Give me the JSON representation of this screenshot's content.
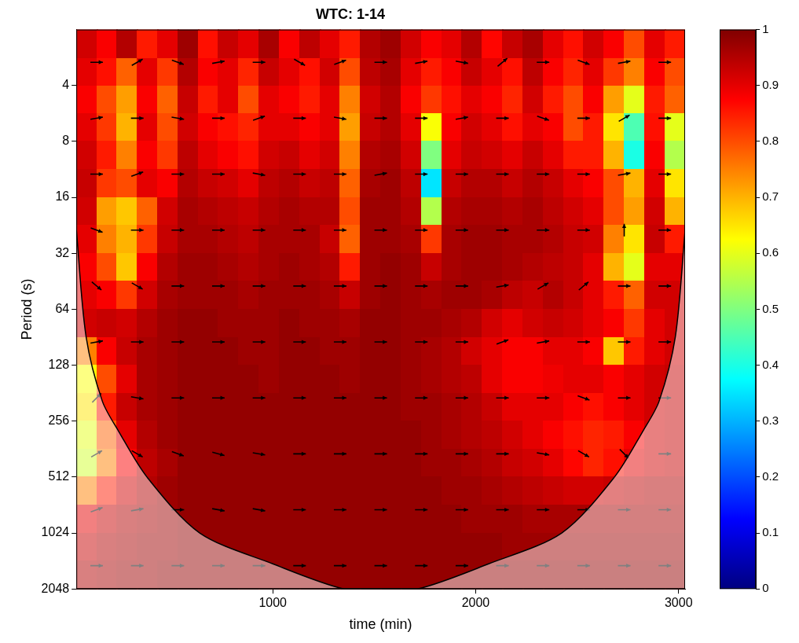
{
  "chart_data": {
    "type": "heatmap",
    "title": "WTC: 1-14",
    "x_label": "time (min)",
    "y_label": "Period (s)",
    "xlim": [
      32,
      3032
    ],
    "xticks": [
      1000,
      2000,
      3000
    ],
    "ylim": [
      2,
      2048
    ],
    "yticks": [
      4,
      8,
      16,
      32,
      64,
      128,
      256,
      512,
      1024,
      2048
    ],
    "log": "y",
    "grid": false,
    "x": [
      82,
      182,
      282,
      382,
      482,
      582,
      682,
      782,
      882,
      982,
      1082,
      1182,
      1282,
      1382,
      1482,
      1582,
      1682,
      1782,
      1882,
      1982,
      2082,
      2182,
      2282,
      2382,
      2482,
      2582,
      2682,
      2782,
      2882,
      2982
    ],
    "y": [
      2.4,
      3.4,
      4.8,
      6.7,
      9.5,
      13.5,
      19,
      27,
      38,
      54,
      76,
      108,
      152,
      215,
      304,
      431,
      609,
      861,
      1218,
      1722
    ],
    "cells": [
      [
        0.92,
        0.88,
        0.95,
        0.85,
        0.9,
        0.97,
        0.86,
        0.93,
        0.9,
        0.96,
        0.88,
        0.94,
        0.9,
        0.85,
        0.95,
        0.97,
        0.92,
        0.88,
        0.9,
        0.95,
        0.87,
        0.93,
        0.96,
        0.9,
        0.86,
        0.92,
        0.88,
        0.8,
        0.9,
        0.85
      ],
      [
        0.9,
        0.86,
        0.78,
        0.9,
        0.82,
        0.95,
        0.88,
        0.9,
        0.84,
        0.93,
        0.9,
        0.86,
        0.92,
        0.8,
        0.94,
        0.96,
        0.9,
        0.85,
        0.88,
        0.93,
        0.9,
        0.86,
        0.94,
        0.88,
        0.84,
        0.9,
        0.82,
        0.75,
        0.88,
        0.8
      ],
      [
        0.88,
        0.8,
        0.72,
        0.88,
        0.78,
        0.93,
        0.85,
        0.9,
        0.8,
        0.9,
        0.88,
        0.85,
        0.9,
        0.75,
        0.92,
        0.95,
        0.88,
        0.82,
        0.86,
        0.9,
        0.88,
        0.84,
        0.92,
        0.85,
        0.8,
        0.88,
        0.72,
        0.6,
        0.85,
        0.78
      ],
      [
        0.9,
        0.82,
        0.7,
        0.9,
        0.8,
        0.92,
        0.88,
        0.86,
        0.84,
        0.9,
        0.9,
        0.88,
        0.9,
        0.72,
        0.93,
        0.95,
        0.9,
        0.62,
        0.88,
        0.92,
        0.9,
        0.86,
        0.9,
        0.88,
        0.8,
        0.85,
        0.65,
        0.45,
        0.86,
        0.6
      ],
      [
        0.92,
        0.85,
        0.75,
        0.88,
        0.82,
        0.94,
        0.9,
        0.88,
        0.86,
        0.92,
        0.93,
        0.9,
        0.92,
        0.75,
        0.95,
        0.96,
        0.92,
        0.5,
        0.9,
        0.93,
        0.92,
        0.9,
        0.93,
        0.9,
        0.85,
        0.85,
        0.7,
        0.4,
        0.88,
        0.55
      ],
      [
        0.93,
        0.82,
        0.8,
        0.9,
        0.88,
        0.95,
        0.93,
        0.92,
        0.9,
        0.94,
        0.95,
        0.93,
        0.94,
        0.78,
        0.96,
        0.97,
        0.94,
        0.35,
        0.93,
        0.95,
        0.95,
        0.93,
        0.95,
        0.93,
        0.9,
        0.88,
        0.8,
        0.7,
        0.9,
        0.65
      ],
      [
        0.92,
        0.72,
        0.68,
        0.78,
        0.92,
        0.96,
        0.95,
        0.94,
        0.93,
        0.95,
        0.96,
        0.95,
        0.95,
        0.8,
        0.97,
        0.97,
        0.95,
        0.55,
        0.95,
        0.96,
        0.96,
        0.95,
        0.96,
        0.94,
        0.92,
        0.9,
        0.8,
        0.72,
        0.92,
        0.7
      ],
      [
        0.9,
        0.75,
        0.7,
        0.82,
        0.93,
        0.96,
        0.96,
        0.95,
        0.94,
        0.96,
        0.96,
        0.96,
        0.93,
        0.78,
        0.97,
        0.97,
        0.96,
        0.82,
        0.96,
        0.97,
        0.97,
        0.96,
        0.96,
        0.95,
        0.93,
        0.92,
        0.75,
        0.65,
        0.93,
        0.85
      ],
      [
        0.88,
        0.8,
        0.68,
        0.88,
        0.95,
        0.97,
        0.97,
        0.96,
        0.95,
        0.96,
        0.97,
        0.96,
        0.95,
        0.85,
        0.97,
        0.98,
        0.97,
        0.93,
        0.96,
        0.97,
        0.97,
        0.96,
        0.95,
        0.94,
        0.93,
        0.9,
        0.7,
        0.6,
        0.9,
        0.9
      ],
      [
        0.9,
        0.88,
        0.82,
        0.92,
        0.96,
        0.97,
        0.97,
        0.97,
        0.96,
        0.97,
        0.97,
        0.97,
        0.96,
        0.93,
        0.97,
        0.98,
        0.97,
        0.96,
        0.97,
        0.97,
        0.96,
        0.94,
        0.93,
        0.95,
        0.93,
        0.9,
        0.85,
        0.78,
        0.92,
        0.92
      ],
      [
        0.92,
        0.93,
        0.92,
        0.95,
        0.97,
        0.98,
        0.98,
        0.97,
        0.97,
        0.97,
        0.98,
        0.97,
        0.97,
        0.96,
        0.98,
        0.98,
        0.97,
        0.97,
        0.96,
        0.95,
        0.92,
        0.9,
        0.92,
        0.93,
        0.92,
        0.9,
        0.88,
        0.82,
        0.9,
        0.92
      ],
      [
        0.75,
        0.88,
        0.93,
        0.96,
        0.97,
        0.98,
        0.98,
        0.98,
        0.97,
        0.97,
        0.98,
        0.98,
        0.97,
        0.97,
        0.98,
        0.98,
        0.97,
        0.96,
        0.95,
        0.92,
        0.9,
        0.88,
        0.88,
        0.9,
        0.9,
        0.88,
        0.68,
        0.85,
        0.9,
        0.92
      ],
      [
        0.62,
        0.8,
        0.9,
        0.96,
        0.97,
        0.98,
        0.98,
        0.98,
        0.98,
        0.97,
        0.98,
        0.98,
        0.98,
        0.97,
        0.98,
        0.98,
        0.97,
        0.96,
        0.95,
        0.94,
        0.9,
        0.88,
        0.88,
        0.89,
        0.9,
        0.9,
        0.88,
        0.9,
        0.92,
        0.93
      ],
      [
        0.65,
        0.85,
        0.93,
        0.96,
        0.97,
        0.98,
        0.98,
        0.98,
        0.98,
        0.98,
        0.98,
        0.98,
        0.98,
        0.98,
        0.98,
        0.98,
        0.97,
        0.97,
        0.96,
        0.95,
        0.93,
        0.9,
        0.9,
        0.9,
        0.88,
        0.86,
        0.88,
        0.9,
        0.92,
        0.93
      ],
      [
        0.6,
        0.78,
        0.9,
        0.95,
        0.97,
        0.98,
        0.98,
        0.98,
        0.98,
        0.98,
        0.98,
        0.98,
        0.98,
        0.98,
        0.98,
        0.98,
        0.98,
        0.97,
        0.96,
        0.95,
        0.94,
        0.92,
        0.9,
        0.88,
        0.86,
        0.84,
        0.85,
        0.88,
        0.92,
        0.93
      ],
      [
        0.58,
        0.75,
        0.88,
        0.94,
        0.96,
        0.98,
        0.98,
        0.98,
        0.98,
        0.98,
        0.98,
        0.98,
        0.98,
        0.98,
        0.98,
        0.98,
        0.98,
        0.97,
        0.97,
        0.96,
        0.95,
        0.93,
        0.92,
        0.9,
        0.87,
        0.84,
        0.86,
        0.9,
        0.92,
        0.93
      ],
      [
        0.75,
        0.85,
        0.92,
        0.95,
        0.97,
        0.98,
        0.98,
        0.98,
        0.98,
        0.98,
        0.98,
        0.98,
        0.98,
        0.98,
        0.98,
        0.98,
        0.98,
        0.98,
        0.97,
        0.97,
        0.96,
        0.95,
        0.94,
        0.93,
        0.92,
        0.92,
        0.93,
        0.94,
        0.95,
        0.95
      ],
      [
        0.9,
        0.93,
        0.95,
        0.96,
        0.97,
        0.98,
        0.98,
        0.98,
        0.98,
        0.98,
        0.98,
        0.98,
        0.98,
        0.98,
        0.98,
        0.98,
        0.98,
        0.98,
        0.98,
        0.97,
        0.97,
        0.97,
        0.96,
        0.96,
        0.96,
        0.96,
        0.96,
        0.96,
        0.96,
        0.96
      ],
      [
        0.93,
        0.95,
        0.96,
        0.97,
        0.97,
        0.98,
        0.98,
        0.98,
        0.98,
        0.98,
        0.98,
        0.98,
        0.98,
        0.98,
        0.98,
        0.98,
        0.98,
        0.98,
        0.98,
        0.98,
        0.98,
        0.97,
        0.97,
        0.97,
        0.97,
        0.97,
        0.97,
        0.97,
        0.97,
        0.97
      ],
      [
        0.95,
        0.96,
        0.97,
        0.97,
        0.98,
        0.98,
        0.98,
        0.98,
        0.98,
        0.98,
        0.98,
        0.98,
        0.98,
        0.98,
        0.98,
        0.98,
        0.98,
        0.98,
        0.98,
        0.98,
        0.98,
        0.98,
        0.98,
        0.98,
        0.98,
        0.98,
        0.98,
        0.98,
        0.98,
        0.98
      ]
    ],
    "colorbar": {
      "range": [
        0,
        1
      ],
      "ticks": [
        0,
        0.1,
        0.2,
        0.3,
        0.4,
        0.5,
        0.6,
        0.7,
        0.8,
        0.9,
        1
      ]
    },
    "phase": {
      "x": [
        132,
        332,
        532,
        732,
        932,
        1132,
        1332,
        1532,
        1732,
        1932,
        2132,
        2332,
        2532,
        2732,
        2932
      ],
      "y": [
        3,
        6,
        12,
        24,
        48,
        96,
        192,
        384,
        768,
        1536
      ],
      "degrees": [
        [
          0,
          30,
          -20,
          10,
          0,
          -30,
          20,
          0,
          10,
          -10,
          40,
          0,
          -20,
          10,
          0
        ],
        [
          10,
          0,
          -10,
          0,
          20,
          0,
          -10,
          0,
          0,
          10,
          0,
          -20,
          0,
          30,
          0
        ],
        [
          0,
          20,
          0,
          0,
          -10,
          0,
          0,
          10,
          0,
          0,
          0,
          0,
          0,
          10,
          0
        ],
        [
          -20,
          0,
          0,
          0,
          0,
          0,
          0,
          0,
          0,
          0,
          0,
          0,
          0,
          90,
          0
        ],
        [
          -40,
          -30,
          0,
          0,
          0,
          0,
          0,
          0,
          0,
          0,
          10,
          30,
          40,
          0,
          0
        ],
        [
          10,
          0,
          0,
          0,
          0,
          0,
          0,
          0,
          0,
          0,
          20,
          10,
          0,
          0,
          0
        ],
        [
          45,
          -10,
          0,
          0,
          0,
          0,
          0,
          0,
          0,
          0,
          0,
          0,
          -20,
          0,
          0
        ],
        [
          30,
          -30,
          -20,
          -15,
          -10,
          0,
          0,
          0,
          0,
          0,
          0,
          -10,
          -30,
          -45,
          0
        ],
        [
          20,
          10,
          0,
          -10,
          -10,
          0,
          0,
          0,
          0,
          0,
          0,
          0,
          0,
          0,
          0
        ],
        [
          0,
          0,
          0,
          0,
          0,
          0,
          0,
          0,
          0,
          0,
          0,
          0,
          0,
          0,
          0
        ]
      ]
    },
    "coi": {
      "x": [
        32,
        80,
        160,
        240,
        380,
        640,
        1000,
        1350,
        1532,
        1714,
        2064,
        2424,
        2684,
        2824,
        2904,
        2984,
        3032
      ],
      "y": [
        24,
        90,
        200,
        290,
        512,
        1024,
        1500,
        2048,
        2048,
        2048,
        1500,
        1024,
        512,
        290,
        200,
        90,
        24
      ]
    }
  }
}
